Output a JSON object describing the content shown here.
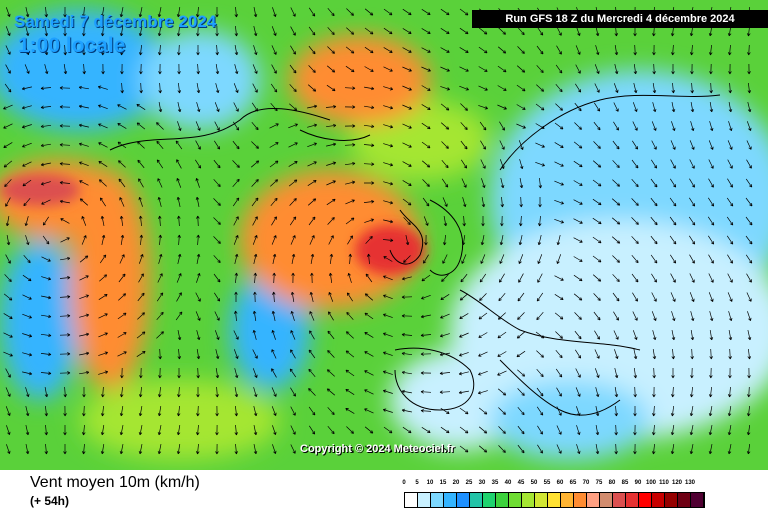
{
  "header": {
    "date": "Samedi 7 décembre 2024",
    "time": "1:00 locale",
    "run": "Run GFS 18 Z du Mercredi 4 décembre 2024"
  },
  "copyright": "Copyright © 2024 Meteociel.fr",
  "legend": {
    "title": "Vent moyen 10m (km/h)",
    "subtitle": "(+ 54h)",
    "scale": [
      {
        "value": "0",
        "color": "#ffffff"
      },
      {
        "value": "5",
        "color": "#c8f0ff"
      },
      {
        "value": "10",
        "color": "#7dd8ff"
      },
      {
        "value": "15",
        "color": "#34b4ff"
      },
      {
        "value": "20",
        "color": "#1e90ff"
      },
      {
        "value": "25",
        "color": "#23c4a8"
      },
      {
        "value": "30",
        "color": "#1ed26e"
      },
      {
        "value": "35",
        "color": "#3cd23c"
      },
      {
        "value": "40",
        "color": "#6edc32"
      },
      {
        "value": "45",
        "color": "#a5e632"
      },
      {
        "value": "50",
        "color": "#d2e632"
      },
      {
        "value": "55",
        "color": "#ffe132"
      },
      {
        "value": "60",
        "color": "#ffb432"
      },
      {
        "value": "65",
        "color": "#ff8c32"
      },
      {
        "value": "70",
        "color": "#ffa082"
      },
      {
        "value": "75",
        "color": "#d28c6e"
      },
      {
        "value": "80",
        "color": "#dc5050"
      },
      {
        "value": "85",
        "color": "#e63232"
      },
      {
        "value": "90",
        "color": "#ff0000"
      },
      {
        "value": "100",
        "color": "#c80000"
      },
      {
        "value": "110",
        "color": "#960000"
      },
      {
        "value": "120",
        "color": "#6e0014"
      },
      {
        "value": "130",
        "color": "#500032"
      }
    ]
  },
  "map": {
    "field_colors": {
      "calm": "#ffffff",
      "light": "#7dd8ff",
      "moderate": "#5ad13a",
      "fresh": "#a5e632",
      "strong": "#ff8c32",
      "storm": "#ff0000"
    },
    "arrow_color": "#000000",
    "coast_color": "#000000"
  }
}
